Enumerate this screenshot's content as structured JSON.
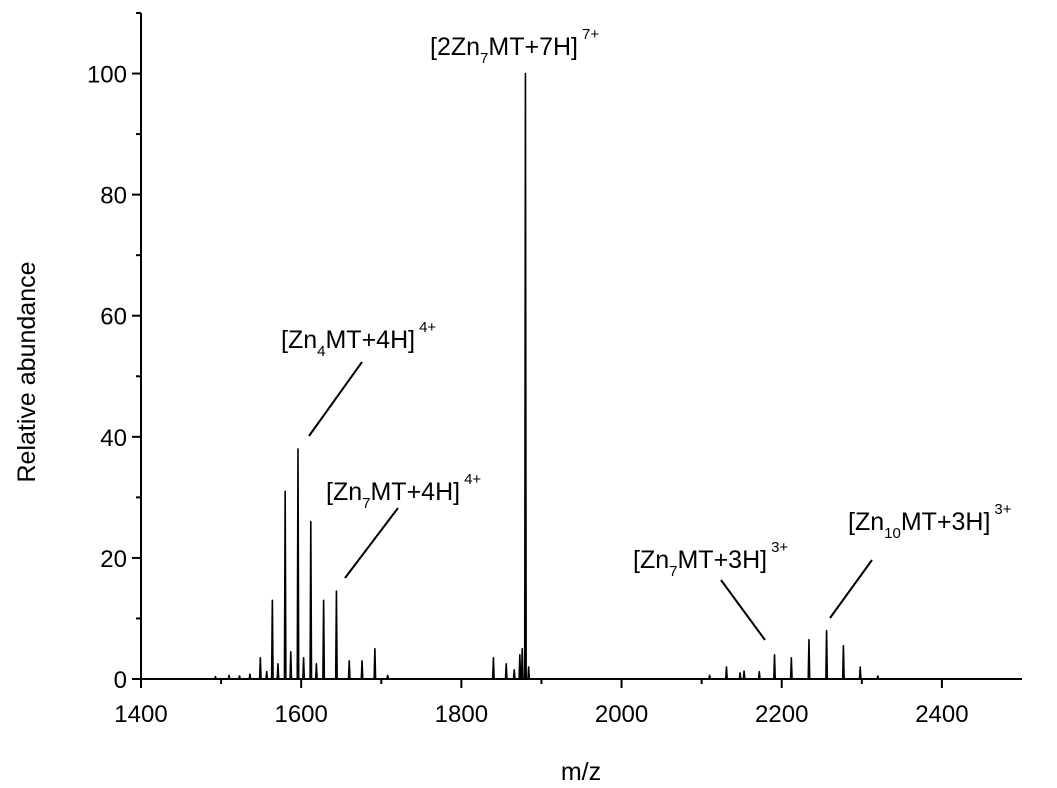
{
  "chart_data": {
    "type": "line",
    "title": "",
    "xlabel": "m/z",
    "ylabel": "Relative abundance",
    "xlim": [
      1400,
      2500
    ],
    "ylim": [
      0,
      110
    ],
    "x_ticks": [
      1400,
      1600,
      1800,
      2000,
      2200,
      2400
    ],
    "y_ticks": [
      0,
      20,
      40,
      60,
      80,
      100
    ],
    "grid": false,
    "legend": "none",
    "line_color": "#000000",
    "peaks": [
      {
        "x": 1493,
        "y": 0.4
      },
      {
        "x": 1510,
        "y": 0.6
      },
      {
        "x": 1523,
        "y": 0.5
      },
      {
        "x": 1536,
        "y": 0.8
      },
      {
        "x": 1549,
        "y": 3.5
      },
      {
        "x": 1557,
        "y": 1.2
      },
      {
        "x": 1564,
        "y": 13
      },
      {
        "x": 1571,
        "y": 2.5
      },
      {
        "x": 1580,
        "y": 31
      },
      {
        "x": 1587,
        "y": 4.5
      },
      {
        "x": 1596,
        "y": 38
      },
      {
        "x": 1603,
        "y": 3.5
      },
      {
        "x": 1612,
        "y": 26
      },
      {
        "x": 1619,
        "y": 2.5
      },
      {
        "x": 1628,
        "y": 13
      },
      {
        "x": 1644,
        "y": 14.5
      },
      {
        "x": 1660,
        "y": 3
      },
      {
        "x": 1676,
        "y": 3
      },
      {
        "x": 1692,
        "y": 5
      },
      {
        "x": 1708,
        "y": 0.6
      },
      {
        "x": 1840,
        "y": 3.5
      },
      {
        "x": 1856,
        "y": 2.5
      },
      {
        "x": 1866,
        "y": 1.5
      },
      {
        "x": 1873,
        "y": 4
      },
      {
        "x": 1876,
        "y": 5
      },
      {
        "x": 1880,
        "y": 100
      },
      {
        "x": 1884,
        "y": 2
      },
      {
        "x": 2110,
        "y": 0.6
      },
      {
        "x": 2131,
        "y": 2
      },
      {
        "x": 2148,
        "y": 1
      },
      {
        "x": 2153,
        "y": 1.3
      },
      {
        "x": 2172,
        "y": 1.2
      },
      {
        "x": 2191,
        "y": 4
      },
      {
        "x": 2212,
        "y": 3.5
      },
      {
        "x": 2234,
        "y": 6.5
      },
      {
        "x": 2256,
        "y": 8
      },
      {
        "x": 2277,
        "y": 5.5
      },
      {
        "x": 2298,
        "y": 2
      },
      {
        "x": 2320,
        "y": 0.5
      }
    ],
    "annotations": [
      {
        "text": "[2Zn",
        "sub": "7",
        "rest": "MT+7H]",
        "sup": "7+"
      },
      {
        "text": "[Zn",
        "sub": "4",
        "rest": "MT+4H]",
        "sup": "4+",
        "pointer": {
          "x": 1607,
          "y": 40
        }
      },
      {
        "text": "[Zn",
        "sub": "7",
        "rest": "MT+4H]",
        "sup": "4+",
        "pointer": {
          "x": 1654,
          "y": 16
        }
      },
      {
        "text": "[Zn",
        "sub": "7",
        "rest": "MT+3H]",
        "sup": "3+",
        "pointer": {
          "x": 2185,
          "y": 6.5
        }
      },
      {
        "text": "[Zn",
        "sub": "10",
        "rest": "MT+3H]",
        "sup": "3+",
        "pointer": {
          "x": 2262,
          "y": 10
        }
      }
    ]
  }
}
